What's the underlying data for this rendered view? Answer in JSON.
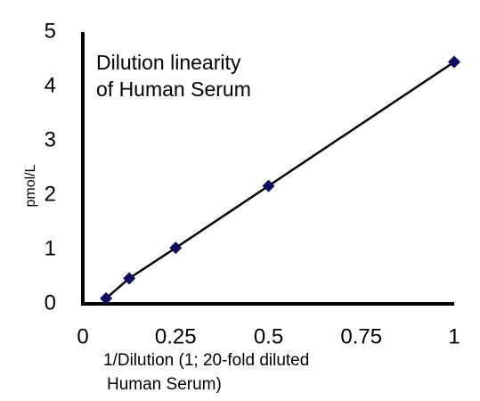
{
  "chart_data": {
    "type": "scatter",
    "title": [
      "Dilution linearity",
      "of Human Serum"
    ],
    "x_label": [
      "1/Dilution (1; 20-fold diluted",
      "Human Serum)"
    ],
    "y_label": "pmol/L",
    "x": [
      0.0625,
      0.125,
      0.25,
      0.5,
      1
    ],
    "series": [
      {
        "color": "#0d0d5e",
        "line_color": "#000000",
        "values": [
          0.1,
          0.47,
          1.03,
          2.17,
          4.45
        ]
      }
    ],
    "xlim": [
      0,
      1
    ],
    "xticks": [
      0,
      0.25,
      0.5,
      0.75,
      1
    ],
    "ylim": [
      0,
      5
    ],
    "yticks": [
      0,
      1,
      2,
      3,
      4,
      5
    ],
    "grid": false
  }
}
